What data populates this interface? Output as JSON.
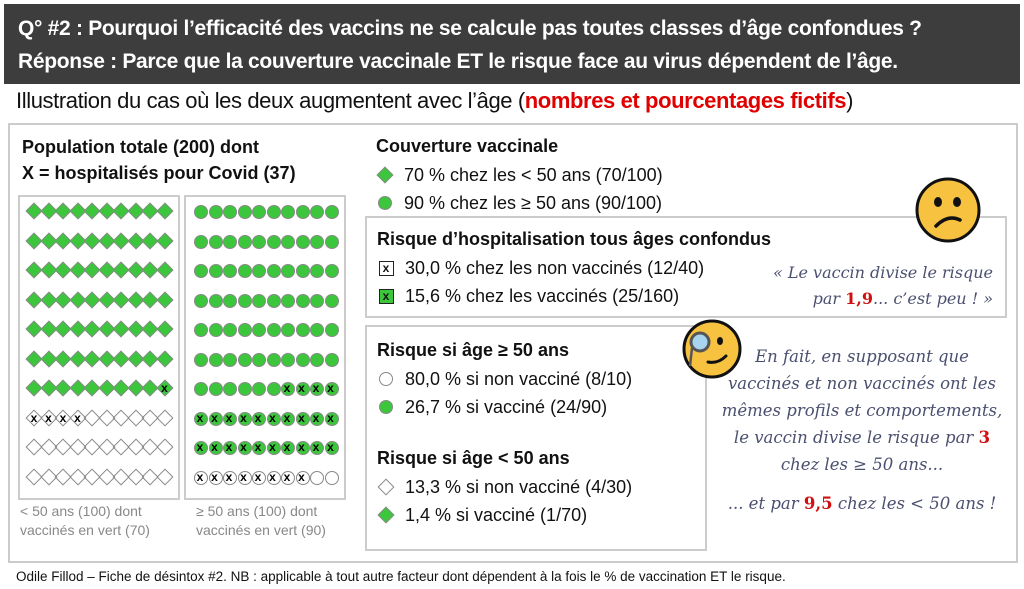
{
  "header": {
    "question": "Q° #2 : Pourquoi l’efficacité des vaccins ne se calcule pas toutes classes d’âge confondues ?",
    "answer": "Réponse : Parce que la couverture vaccinale ET le risque face au virus dépendent de l’âge."
  },
  "subtitle": {
    "text": "Illustration du cas où les deux augmentent avec l’âge (",
    "highlight": "nombres et pourcentages fictifs",
    "end": ")"
  },
  "population": {
    "title_line1": "Population totale (200) dont",
    "title_line2": "X = hospitalisés pour Covid (37)",
    "under50": {
      "caption_line1": "< 50 ans (100) dont",
      "caption_line2": "vaccinés en vert (70)",
      "total": 100,
      "vaccinated": 70,
      "hosp_vaccinated": 1,
      "hosp_unvaccinated": 4
    },
    "over50": {
      "caption_line1": "≥ 50 ans (100) dont",
      "caption_line2": "vaccinés en vert (90)",
      "total": 100,
      "vaccinated": 90,
      "hosp_vaccinated": 24,
      "hosp_unvaccinated": 8
    }
  },
  "coverage": {
    "title": "Couverture vaccinale",
    "items": [
      "70 % chez les < 50 ans (70/100)",
      "90 % chez les ≥ 50 ans (90/100)"
    ]
  },
  "overall_risk": {
    "title": "Risque d’hospitalisation tous âges confondus",
    "items": [
      "30,0 % chez les non vaccinés (12/40)",
      "15,6 % chez les vaccinés (25/160)"
    ],
    "symbol": "x",
    "quote_pre": "« Le vaccin divise le risque",
    "quote_par": "par",
    "quote_value": "1,9",
    "quote_post": "... c’est peu ! »"
  },
  "age_risk": {
    "over50_title": "Risque si âge ≥ 50 ans",
    "over50_items": [
      "80,0 % si non vacciné (8/10)",
      "26,7 % si vacciné (24/90)"
    ],
    "under50_title": "Risque si âge < 50 ans",
    "under50_items": [
      "13,3 % si non vacciné (4/30)",
      "1,4 % si vacciné (1/70)"
    ]
  },
  "explanation": {
    "line1": "En fait, en supposant que",
    "line2": "vaccinés et non vaccinés ont les",
    "line3": "mêmes profils et comportements,",
    "line4": "le vaccin divise le risque par",
    "value_over50": "3",
    "line5": "chez les ≥ 50 ans...",
    "line6_pre": "... et par",
    "value_under50": "9,5",
    "line6_post": "chez les < 50 ans !"
  },
  "footer": "Odile Fillod – Fiche de désintox #2.  NB : applicable à tout autre facteur dont dépendent à la fois le % de vaccination ET le risque.",
  "colors": {
    "header_bg": "#3d3d3d",
    "green": "#3cc63c",
    "red": "#e00000",
    "script": "#4b5070"
  }
}
